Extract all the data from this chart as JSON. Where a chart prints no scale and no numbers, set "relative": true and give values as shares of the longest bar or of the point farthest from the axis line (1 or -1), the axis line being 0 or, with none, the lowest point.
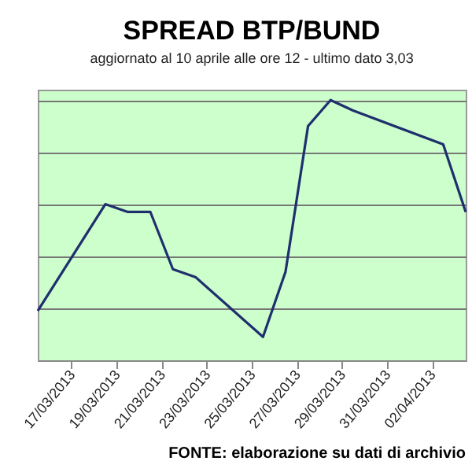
{
  "chart_data": {
    "type": "line",
    "title": "SPREAD  BTP/BUND",
    "subtitle": "aggiornato al 10 aprile alle ore 12 - ultimo dato 3,03",
    "annotations": [
      "FONTE: elaborazione su dati di archivio"
    ],
    "relative": true,
    "grid": "y",
    "x": [
      "2013-03-15T12:00",
      "2013-03-18T12:00",
      "2013-03-19T12:00",
      "2013-03-20T12:00",
      "2013-03-21T12:00",
      "2013-03-22T12:00",
      "2013-03-25T12:00",
      "2013-03-26T12:00",
      "2013-03-27T12:00",
      "2013-03-28T12:00",
      "2013-03-29T12:00",
      "2013-04-02T12:00",
      "2013-04-03T12:00"
    ],
    "xlim": [
      "2013-03-15T12:00",
      "2013-04-03T12:00"
    ],
    "xticks": [
      {
        "value": "2013-03-17",
        "label": "17/03/2013"
      },
      {
        "value": "2013-03-19",
        "label": "19/03/2013"
      },
      {
        "value": "2013-03-21",
        "label": "21/03/2013"
      },
      {
        "value": "2013-03-23",
        "label": "23/03/2013"
      },
      {
        "value": "2013-03-25",
        "label": "25/03/2013"
      },
      {
        "value": "2013-03-27",
        "label": "27/03/2013"
      },
      {
        "value": "2013-03-29",
        "label": "29/03/2013"
      },
      {
        "value": "2013-03-31",
        "label": "31/03/2013"
      },
      {
        "value": "2013-04-02",
        "label": "02/04/2013"
      }
    ],
    "series": [
      {
        "color": "#1f2f6e",
        "values": [
          0.19,
          0.6,
          0.57,
          0.57,
          0.35,
          0.32,
          0.09,
          0.34,
          0.9,
          1,
          0.96,
          0.83,
          0.57
        ]
      }
    ]
  }
}
